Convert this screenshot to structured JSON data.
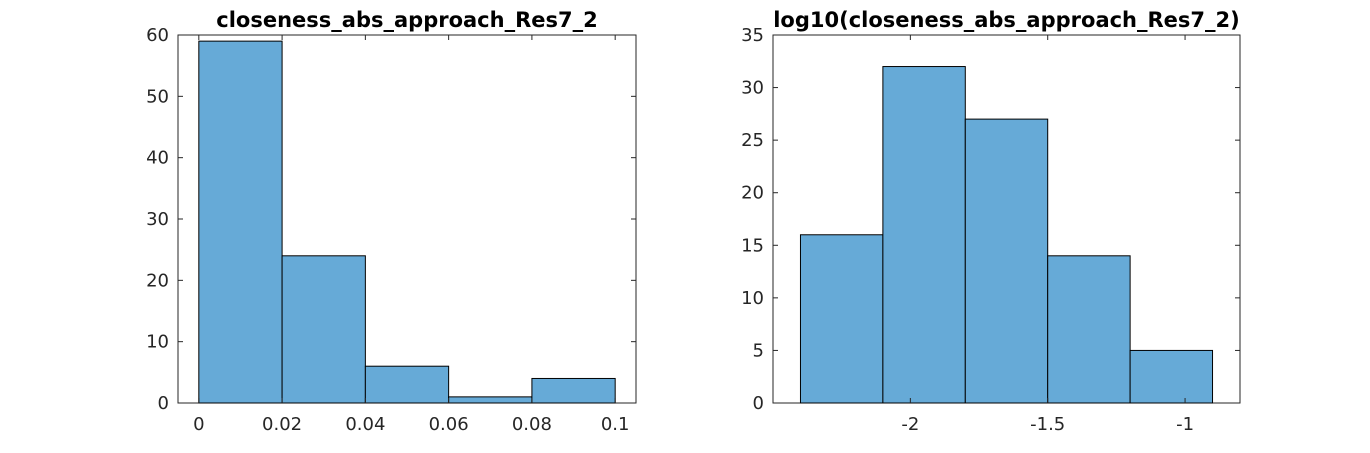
{
  "chart_data": [
    {
      "type": "bar",
      "title": "closeness_abs_approach_Res7_2",
      "xlabel": "",
      "ylabel": "",
      "bin_edges": [
        0,
        0.02,
        0.04,
        0.06,
        0.08,
        0.1
      ],
      "values": [
        59,
        24,
        6,
        1,
        4
      ],
      "xlim": [
        -0.005,
        0.105
      ],
      "ylim": [
        0,
        60
      ],
      "xticks": [
        0,
        0.02,
        0.04,
        0.06,
        0.08,
        0.1
      ],
      "xtick_labels": [
        "0",
        "0.02",
        "0.04",
        "0.06",
        "0.08",
        "0.1"
      ],
      "yticks": [
        0,
        10,
        20,
        30,
        40,
        50,
        60
      ],
      "ytick_labels": [
        "0",
        "10",
        "20",
        "30",
        "40",
        "50",
        "60"
      ],
      "bar_color": "#66aad7",
      "grid": false
    },
    {
      "type": "bar",
      "title": "log10(closeness_abs_approach_Res7_2)",
      "xlabel": "",
      "ylabel": "",
      "bin_edges": [
        -2.4,
        -2.1,
        -1.8,
        -1.5,
        -1.2,
        -0.9
      ],
      "values": [
        16,
        32,
        27,
        14,
        5
      ],
      "xlim": [
        -2.5,
        -0.8
      ],
      "ylim": [
        0,
        35
      ],
      "xticks": [
        -2,
        -1.5,
        -1
      ],
      "xtick_labels": [
        "-2",
        "-1.5",
        "-1"
      ],
      "yticks": [
        0,
        5,
        10,
        15,
        20,
        25,
        30,
        35
      ],
      "ytick_labels": [
        "0",
        "5",
        "10",
        "15",
        "20",
        "25",
        "30",
        "35"
      ],
      "bar_color": "#66aad7",
      "grid": false
    }
  ]
}
